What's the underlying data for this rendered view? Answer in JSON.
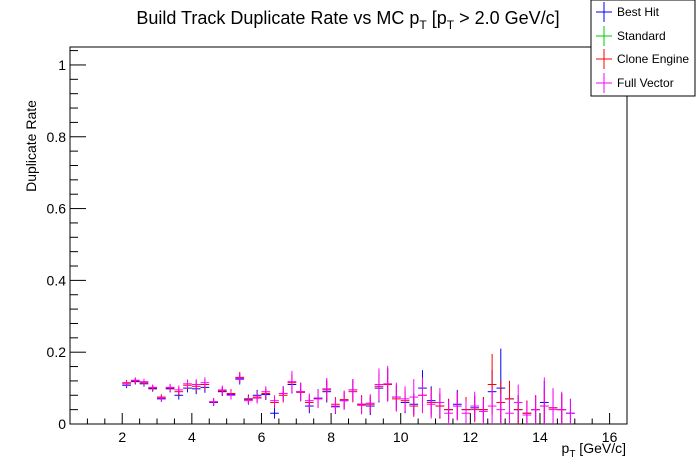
{
  "chart_data": {
    "type": "scatter",
    "title": {
      "main": "Build Track Duplicate Rate vs MC p",
      "sub1": "T",
      "mid": " [p",
      "sub2": "T",
      "tail": " > 2.0 GeV/c]"
    },
    "xlabel": {
      "main": "p",
      "sub": "T",
      "tail": " [GeV/c]"
    },
    "ylabel": "Duplicate Rate",
    "xlim": [
      0.5,
      16.5
    ],
    "ylim": [
      0,
      1.05
    ],
    "x_ticks": [
      2,
      4,
      6,
      8,
      10,
      12,
      14,
      16
    ],
    "y_ticks": [
      0,
      0.2,
      0.4,
      0.6,
      0.8,
      1
    ],
    "y_tick_labels": [
      "0",
      "0.2",
      "0.4",
      "0.6",
      "0.8",
      "1"
    ],
    "x_bin_halfwidth": 0.125,
    "legend_position": "top-right",
    "series": [
      {
        "name": "Best Hit",
        "color": "#0000ff",
        "x": [
          2.125,
          2.375,
          2.625,
          2.875,
          3.125,
          3.375,
          3.625,
          3.875,
          4.125,
          4.375,
          4.625,
          4.875,
          5.125,
          5.375,
          5.625,
          5.875,
          6.125,
          6.375,
          6.625,
          6.875,
          7.125,
          7.375,
          7.625,
          7.875,
          8.125,
          8.375,
          8.625,
          8.875,
          9.125,
          9.375,
          9.625,
          9.875,
          10.125,
          10.375,
          10.625,
          10.875,
          11.125,
          11.375,
          11.625,
          11.875,
          12.125,
          12.375,
          12.625,
          12.875,
          13.125,
          13.375,
          13.625,
          13.875,
          14.125,
          14.375,
          14.625,
          14.875
        ],
        "y": [
          0.108,
          0.118,
          0.112,
          0.098,
          0.07,
          0.098,
          0.08,
          0.1,
          0.098,
          0.102,
          0.06,
          0.09,
          0.082,
          0.125,
          0.07,
          0.08,
          0.082,
          0.03,
          0.085,
          0.11,
          0.09,
          0.05,
          0.072,
          0.09,
          0.048,
          0.065,
          0.095,
          0.055,
          0.05,
          0.1,
          0.11,
          0.075,
          0.06,
          0.055,
          0.1,
          0.065,
          0.05,
          0.04,
          0.055,
          0.04,
          0.045,
          0.04,
          0.09,
          0.1,
          0.07,
          0.04,
          0.03,
          0.04,
          0.06,
          0.045,
          0.04,
          0.03
        ],
        "err": [
          0.008,
          0.008,
          0.008,
          0.008,
          0.008,
          0.01,
          0.012,
          0.012,
          0.015,
          0.015,
          0.01,
          0.012,
          0.012,
          0.015,
          0.012,
          0.015,
          0.015,
          0.015,
          0.02,
          0.025,
          0.025,
          0.02,
          0.025,
          0.03,
          0.02,
          0.025,
          0.03,
          0.025,
          0.025,
          0.04,
          0.045,
          0.035,
          0.03,
          0.03,
          0.05,
          0.04,
          0.035,
          0.03,
          0.04,
          0.035,
          0.035,
          0.035,
          0.06,
          0.11,
          0.05,
          0.04,
          0.035,
          0.04,
          0.06,
          0.05,
          0.045,
          0.04
        ]
      },
      {
        "name": "Standard",
        "color": "#00cc00",
        "x": [],
        "y": [],
        "err": []
      },
      {
        "name": "Clone Engine",
        "color": "#ff0000",
        "x": [
          2.125,
          2.375,
          2.625,
          2.875,
          3.125,
          3.375,
          3.625,
          3.875,
          4.125,
          4.375,
          4.625,
          4.875,
          5.125,
          5.375,
          5.625,
          5.875,
          6.125,
          6.375,
          6.625,
          6.875,
          7.125,
          7.375,
          7.625,
          7.875,
          8.125,
          8.375,
          8.625,
          8.875,
          9.125,
          9.375,
          9.625,
          9.875,
          10.125,
          10.375,
          10.625,
          10.875,
          11.125,
          11.375,
          11.625,
          11.875,
          12.125,
          12.375,
          12.625,
          12.875,
          13.125,
          13.375,
          13.625,
          13.875,
          14.125,
          14.375,
          14.625
        ],
        "y": [
          0.115,
          0.12,
          0.115,
          0.1,
          0.075,
          0.1,
          0.09,
          0.108,
          0.105,
          0.11,
          0.062,
          0.092,
          0.085,
          0.13,
          0.068,
          0.075,
          0.085,
          0.06,
          0.08,
          0.115,
          0.088,
          0.06,
          0.07,
          0.095,
          0.055,
          0.068,
          0.09,
          0.055,
          0.055,
          0.105,
          0.11,
          0.07,
          0.065,
          0.05,
          0.08,
          0.06,
          0.05,
          0.04,
          0.05,
          0.04,
          0.04,
          0.04,
          0.11,
          0.06,
          0.07,
          0.04,
          0.03,
          0.04,
          0.05,
          0.045,
          0.04
        ],
        "err": [
          0.008,
          0.008,
          0.008,
          0.008,
          0.008,
          0.01,
          0.012,
          0.012,
          0.015,
          0.015,
          0.01,
          0.012,
          0.012,
          0.015,
          0.012,
          0.015,
          0.015,
          0.015,
          0.02,
          0.025,
          0.025,
          0.02,
          0.025,
          0.03,
          0.02,
          0.025,
          0.03,
          0.025,
          0.025,
          0.04,
          0.045,
          0.035,
          0.03,
          0.03,
          0.045,
          0.04,
          0.035,
          0.03,
          0.04,
          0.035,
          0.035,
          0.035,
          0.085,
          0.06,
          0.05,
          0.04,
          0.035,
          0.04,
          0.05,
          0.05,
          0.045
        ]
      },
      {
        "name": "Full Vector",
        "color": "#ff00ff",
        "x": [
          2.125,
          2.375,
          2.625,
          2.875,
          3.125,
          3.375,
          3.625,
          3.875,
          4.125,
          4.375,
          4.625,
          4.875,
          5.125,
          5.375,
          5.625,
          5.875,
          6.125,
          6.375,
          6.625,
          6.875,
          7.125,
          7.375,
          7.625,
          7.875,
          8.125,
          8.375,
          8.625,
          8.875,
          9.125,
          9.375,
          9.625,
          9.875,
          10.125,
          10.375,
          10.625,
          10.875,
          11.125,
          11.375,
          11.625,
          11.875,
          12.125,
          12.375,
          12.625,
          12.875,
          13.125,
          13.375,
          13.625,
          13.875,
          14.125,
          14.375,
          14.625,
          14.875
        ],
        "y": [
          0.112,
          0.122,
          0.118,
          0.102,
          0.072,
          0.102,
          0.095,
          0.112,
          0.11,
          0.115,
          0.062,
          0.095,
          0.08,
          0.128,
          0.065,
          0.072,
          0.09,
          0.065,
          0.085,
          0.118,
          0.09,
          0.065,
          0.07,
          0.098,
          0.05,
          0.065,
          0.095,
          0.052,
          0.058,
          0.11,
          0.112,
          0.075,
          0.07,
          0.075,
          0.08,
          0.055,
          0.06,
          0.03,
          0.05,
          0.03,
          0.05,
          0.035,
          0.05,
          0.04,
          0.03,
          0.06,
          0.025,
          0.04,
          0.05,
          0.04,
          0.04,
          0.03
        ],
        "err": [
          0.008,
          0.008,
          0.008,
          0.008,
          0.008,
          0.01,
          0.012,
          0.012,
          0.015,
          0.015,
          0.01,
          0.012,
          0.012,
          0.015,
          0.012,
          0.015,
          0.015,
          0.015,
          0.02,
          0.03,
          0.025,
          0.02,
          0.025,
          0.03,
          0.02,
          0.025,
          0.03,
          0.025,
          0.025,
          0.045,
          0.05,
          0.04,
          0.035,
          0.05,
          0.05,
          0.04,
          0.04,
          0.035,
          0.04,
          0.035,
          0.04,
          0.035,
          0.05,
          0.045,
          0.04,
          0.05,
          0.035,
          0.04,
          0.08,
          0.06,
          0.05,
          0.04
        ]
      }
    ]
  }
}
